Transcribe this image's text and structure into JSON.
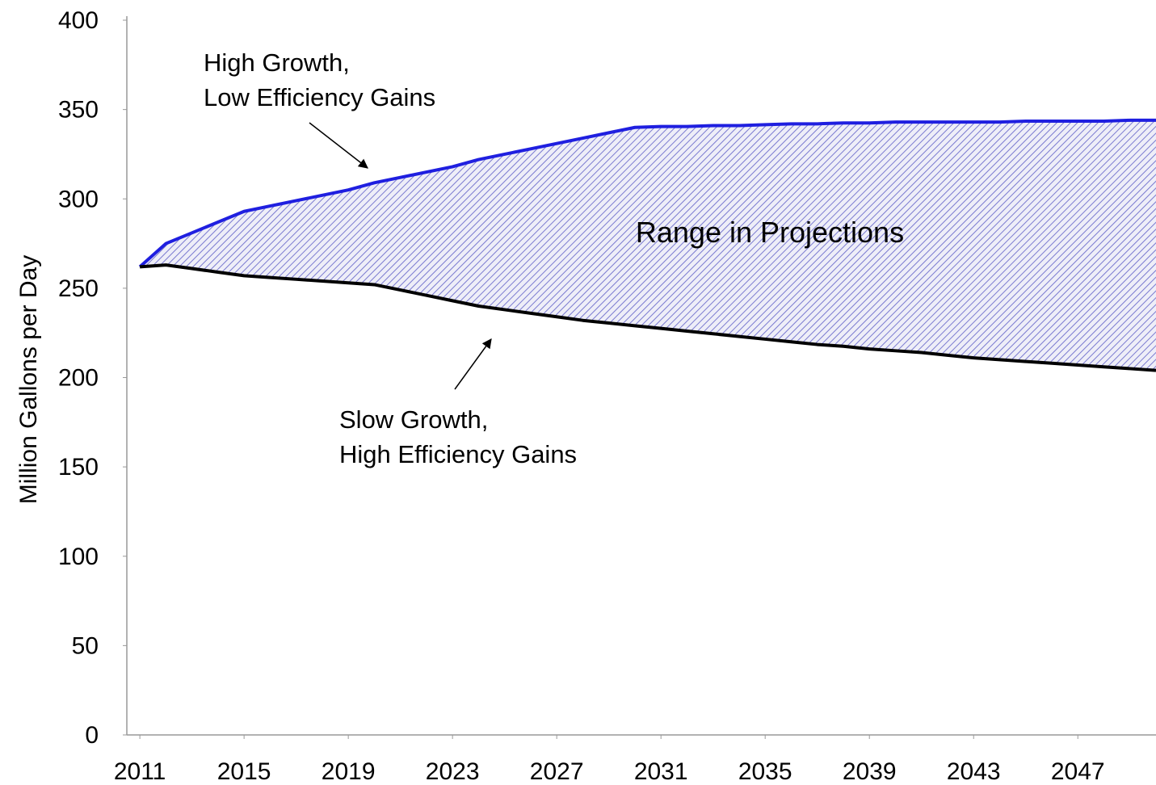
{
  "chart_data": {
    "type": "line",
    "y_label": "Million Gallons per Day",
    "x": [
      2011,
      2012,
      2013,
      2014,
      2015,
      2016,
      2017,
      2018,
      2019,
      2020,
      2021,
      2022,
      2023,
      2024,
      2025,
      2026,
      2027,
      2028,
      2029,
      2030,
      2031,
      2032,
      2033,
      2034,
      2035,
      2036,
      2037,
      2038,
      2039,
      2040,
      2041,
      2042,
      2043,
      2044,
      2045,
      2046,
      2047,
      2048,
      2049,
      2050
    ],
    "series": [
      {
        "color": "#1f1fe0",
        "values": [
          262,
          275,
          281,
          287,
          293,
          296,
          299,
          302,
          305,
          309,
          312,
          315,
          318,
          322,
          325,
          328,
          331,
          334,
          337,
          340,
          340.5,
          340.5,
          341,
          341,
          341.5,
          342,
          342,
          342.5,
          342.5,
          343,
          343,
          343,
          343,
          343,
          343.5,
          343.5,
          343.5,
          343.5,
          344,
          344
        ]
      },
      {
        "color": "#000000",
        "values": [
          262,
          263,
          261,
          259,
          257,
          256,
          255,
          254,
          253,
          252,
          249,
          246,
          243,
          240,
          238,
          236,
          234,
          232,
          230.5,
          229,
          227.5,
          226,
          224.5,
          223,
          221.5,
          220,
          218.5,
          217.5,
          216,
          215,
          214,
          212.5,
          211,
          210,
          209,
          208,
          207,
          206,
          205,
          204
        ]
      }
    ],
    "fill_between": true,
    "fill_color": "#7a7ad0",
    "xlim": [
      2010.5,
      2050
    ],
    "xticks": [
      2011,
      2015,
      2019,
      2023,
      2027,
      2031,
      2035,
      2039,
      2043,
      2047
    ],
    "ylim": [
      0,
      400
    ],
    "yticks": [
      0,
      50,
      100,
      150,
      200,
      250,
      300,
      350,
      400
    ],
    "annotations": [
      {
        "lines": [
          "High Growth,",
          "Low Efficiency Gains"
        ]
      },
      {
        "lines": [
          "Range in Projections"
        ]
      },
      {
        "lines": [
          "Slow Growth,",
          "High Efficiency Gains"
        ]
      }
    ]
  }
}
